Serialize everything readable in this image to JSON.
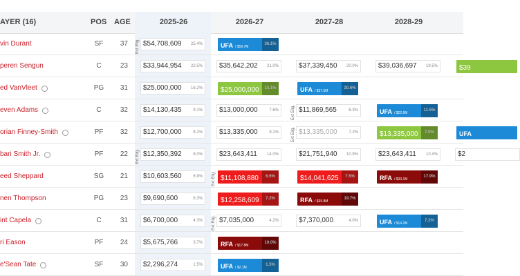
{
  "table": {
    "header": {
      "player": "AYER (16)",
      "pos": "POS",
      "age": "AGE",
      "seasons": [
        "2025-26",
        "2026-27",
        "2027-28",
        "2028-29"
      ]
    },
    "rows": [
      {
        "player": "vin Durant",
        "pos": "SF",
        "age": 37,
        "cells": [
          {
            "amount": "$54,708,609",
            "pct": "25.4%",
            "ext": "Ext Elig."
          },
          {
            "label": "UFA",
            "amount": "/ $59.7M",
            "pct": "36.1%",
            "color": "#1c8ad6"
          }
        ]
      },
      {
        "player": "peren Sengun",
        "pos": "C",
        "age": 23,
        "cells": [
          {
            "amount": "$33,944,954",
            "pct": "22.5%"
          },
          {
            "amount": "$35,642,202",
            "pct": "21.0%"
          },
          {
            "amount": "$37,339,450",
            "pct": "20.0%"
          },
          {
            "amount": "$39,036,697",
            "pct": "19.5%"
          },
          {
            "amount": "$39",
            "color": "#8dc63f"
          }
        ]
      },
      {
        "player": "ed VanVleet",
        "pos": "PG",
        "age": 31,
        "icon": true,
        "cells": [
          {
            "amount": "$25,000,000",
            "pct": "16.2%"
          },
          {
            "amount": "$25,000,000",
            "pct": "15.1%",
            "color": "#8dc63f"
          },
          {
            "label": "UFA",
            "amount": "/ $37.5M",
            "pct": "20.6%",
            "color": "#1c8ad6"
          }
        ]
      },
      {
        "player": "even Adams",
        "pos": "C",
        "age": 32,
        "icon": true,
        "cells": [
          {
            "amount": "$14,130,435",
            "pct": "9.1%"
          },
          {
            "amount": "$13,000,000",
            "pct": "7.6%"
          },
          {
            "amount": "$11,869,565",
            "pct": "6.3%",
            "ext": "Ext Elig."
          },
          {
            "label": "UFA",
            "amount": "/ $22.6M",
            "pct": "11.5%",
            "color": "#1c8ad6"
          }
        ]
      },
      {
        "player": "orian Finney-Smith",
        "pos": "PF",
        "age": 32,
        "icon": true,
        "cells": [
          {
            "amount": "$12,700,000",
            "pct": "8.2%"
          },
          {
            "amount": "$13,335,000",
            "pct": "8.1%"
          },
          {
            "amount": "$13,335,000",
            "pct": "7.2%",
            "ext": "Ext Elig.",
            "text_color": "#aaaaaa"
          },
          {
            "amount": "$13,335,000",
            "pct": "7.0%",
            "color": "#8dc63f"
          },
          {
            "label": "UFA",
            "color": "#1c8ad6"
          }
        ]
      },
      {
        "player": "bari Smith Jr.",
        "pos": "PF",
        "age": 22,
        "icon": true,
        "cells": [
          {
            "amount": "$12,350,392",
            "pct": "8.0%",
            "ext": "Ext Elig."
          },
          {
            "amount": "$23,643,411",
            "pct": "14.0%"
          },
          {
            "amount": "$21,751,940",
            "pct": "10.9%"
          },
          {
            "amount": "$23,643,411",
            "pct": "10.4%"
          },
          {
            "amount": "$2"
          }
        ]
      },
      {
        "player": "eed Sheppard",
        "pos": "SG",
        "age": 21,
        "cells": [
          {
            "amount": "$10,603,560",
            "pct": "6.9%"
          },
          {
            "amount": "$11,108,880",
            "pct": "6.5%",
            "color": "#ee1c1c",
            "ext": "Ext Elig."
          },
          {
            "amount": "$14,041,625",
            "pct": "7.5%",
            "color": "#ee1c1c"
          },
          {
            "label": "RFA",
            "amount": "/ $33.1M",
            "pct": "17.9%",
            "color": "#8b0a0a"
          }
        ]
      },
      {
        "player": "nen Thompson",
        "pos": "PG",
        "age": 23,
        "cells": [
          {
            "amount": "$9,690,600",
            "pct": "6.3%"
          },
          {
            "amount": "$12,258,609",
            "pct": "7.2%",
            "color": "#ee1c1c"
          },
          {
            "label": "RFA",
            "amount": "/ $35.8M",
            "pct": "19.7%",
            "color": "#8b0a0a"
          }
        ]
      },
      {
        "player": "int Capela",
        "pos": "C",
        "age": 31,
        "icon": true,
        "cells": [
          {
            "amount": "$6,700,000",
            "pct": "4.3%"
          },
          {
            "amount": "$7,035,000",
            "pct": "4.2%",
            "ext": "Ext Elig."
          },
          {
            "amount": "$7,370,000",
            "pct": "4.0%"
          },
          {
            "label": "UFA",
            "amount": "/ $14.2M",
            "pct": "7.2%",
            "color": "#1c8ad6"
          }
        ]
      },
      {
        "player": "ri Eason",
        "pos": "PF",
        "age": 24,
        "cells": [
          {
            "amount": "$5,675,766",
            "pct": "3.7%"
          },
          {
            "label": "RFA",
            "amount": "/ $17.8M",
            "pct": "10.0%",
            "color": "#8b0a0a"
          }
        ]
      },
      {
        "player": "e'Sean Tate",
        "pos": "SF",
        "age": 30,
        "icon": true,
        "cells": [
          {
            "amount": "$2,296,274",
            "pct": "1.5%"
          },
          {
            "label": "UFA",
            "amount": "/ $2.1M",
            "pct": "1.5%",
            "color": "#1c8ad6"
          }
        ]
      }
    ]
  }
}
